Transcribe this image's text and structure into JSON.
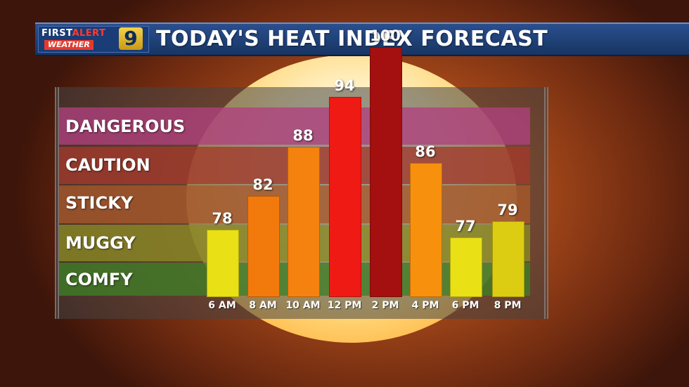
{
  "header": {
    "logo_line1_a": "FIRST",
    "logo_line1_b": "ALERT",
    "logo_line2": "WEATHER",
    "logo_number": "9",
    "title": "TODAY'S HEAT INDEX FORECAST"
  },
  "chart_data": {
    "type": "bar",
    "title": "TODAY'S HEAT INDEX FORECAST",
    "categories": [
      "6 AM",
      "8 AM",
      "10 AM",
      "12 PM",
      "2 PM",
      "4 PM",
      "6 PM",
      "8 PM"
    ],
    "values": [
      78,
      82,
      88,
      94,
      100,
      86,
      77,
      79
    ],
    "bar_colors": [
      "#e9e016",
      "#f27a0c",
      "#f5820f",
      "#f01a14",
      "#a3100f",
      "#f7900c",
      "#e9e016",
      "#dccc12"
    ],
    "zones": [
      {
        "label": "DANGEROUS",
        "color": "#b0407f"
      },
      {
        "label": "CAUTION",
        "color": "#a33a2c"
      },
      {
        "label": "STICKY",
        "color": "#a8582a"
      },
      {
        "label": "MUGGY",
        "color": "#8a8a24"
      },
      {
        "label": "COMFY",
        "color": "#3f7f26"
      }
    ],
    "xlabel": "",
    "ylabel": "",
    "grid": false,
    "legend": "none"
  }
}
